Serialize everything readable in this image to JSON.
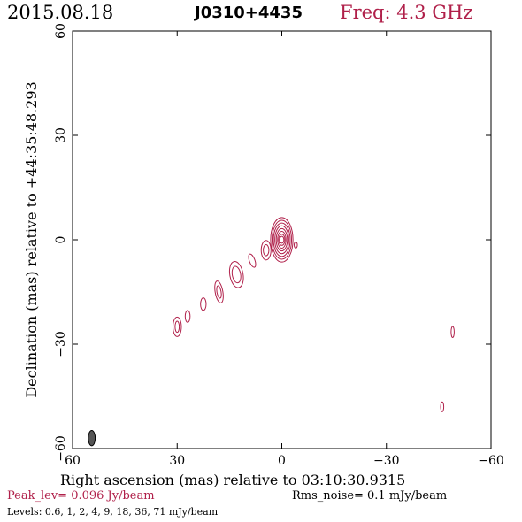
{
  "header": {
    "date": "2015.08.18",
    "source": "J0310+4435",
    "freq": "Freq: 4.3 GHz"
  },
  "footer": {
    "peak": "Peak_lev=  0.096 Jy/beam",
    "rms": "Rms_noise=   0.1 mJy/beam",
    "levels": "Levels: 0.6,    1,    2,    4,    9,   18,   36,   71 mJy/beam"
  },
  "colors": {
    "contour": "#b0204a",
    "axis": "#000000",
    "beam": "#555555"
  },
  "chart_data": {
    "type": "contour",
    "xlabel": "Right ascension (mas) relative to 03:10:30.9315",
    "ylabel": "Declination (mas) relative to +44:35:48.293",
    "xlim": [
      60,
      -60
    ],
    "ylim": [
      -60,
      60
    ],
    "xticks": [
      60,
      30,
      0,
      -30,
      -60
    ],
    "yticks": [
      -60,
      -30,
      0,
      30,
      60
    ],
    "xtick_labels": [
      "60",
      "30",
      "0",
      "−30",
      "−60"
    ],
    "ytick_labels": [
      "−60",
      "−30",
      "0",
      "30",
      "60"
    ],
    "levels_mjy": [
      0.6,
      1,
      2,
      4,
      9,
      18,
      36,
      71
    ],
    "peak_jy": 0.096,
    "rms_mjy": 0.1,
    "beam": {
      "x": 54.5,
      "y": -57,
      "major": 2.2,
      "minor": 1.0,
      "pa": 0
    },
    "components": [
      {
        "x": 0,
        "y": 0,
        "rx": [
          3.2,
          2.8,
          2.4,
          2.0,
          1.6,
          1.2,
          0.9,
          0.6
        ],
        "ry": [
          6.4,
          5.6,
          4.8,
          4.0,
          3.2,
          2.4,
          1.6,
          1.0
        ],
        "pa": 0
      },
      {
        "x": -4,
        "y": -1.5,
        "rx": [
          0.45
        ],
        "ry": [
          0.9
        ],
        "pa": 0
      },
      {
        "x": 4.5,
        "y": -3,
        "rx": [
          1.4,
          0.8
        ],
        "ry": [
          2.8,
          1.6
        ],
        "pa": 0
      },
      {
        "x": 8.5,
        "y": -6,
        "rx": [
          0.8
        ],
        "ry": [
          2.0
        ],
        "pa": -20
      },
      {
        "x": 13,
        "y": -10,
        "rx": [
          1.9,
          1.2
        ],
        "ry": [
          3.8,
          2.4
        ],
        "pa": -10
      },
      {
        "x": 18,
        "y": -15,
        "rx": [
          1.1,
          0.6
        ],
        "ry": [
          3.2,
          1.8
        ],
        "pa": -10
      },
      {
        "x": 22.5,
        "y": -18.5,
        "rx": [
          0.8
        ],
        "ry": [
          1.8
        ],
        "pa": 0
      },
      {
        "x": 27,
        "y": -22,
        "rx": [
          0.7
        ],
        "ry": [
          1.7
        ],
        "pa": 0
      },
      {
        "x": 30,
        "y": -25,
        "rx": [
          1.2,
          0.6
        ],
        "ry": [
          2.8,
          1.6
        ],
        "pa": 0
      },
      {
        "x": -49,
        "y": -26.5,
        "rx": [
          0.45
        ],
        "ry": [
          1.6
        ],
        "pa": 0
      },
      {
        "x": -46,
        "y": -48,
        "rx": [
          0.45
        ],
        "ry": [
          1.4
        ],
        "pa": 0
      }
    ]
  }
}
